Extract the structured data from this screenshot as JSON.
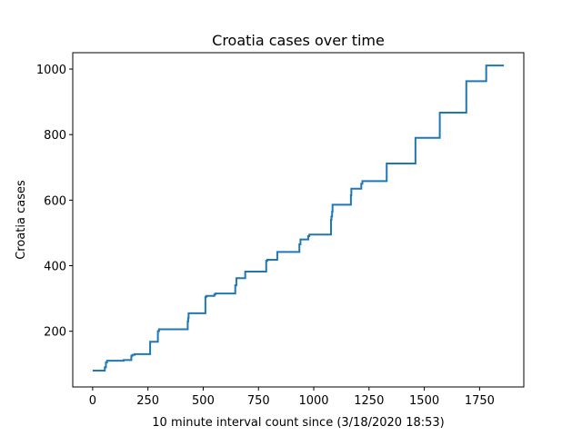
{
  "chart_data": {
    "type": "line",
    "title": "Croatia cases over time",
    "xlabel": "10 minute interval count since (3/18/2020 18:53)",
    "ylabel": "Croatia cases",
    "xlim": [
      -90,
      1950
    ],
    "ylim": [
      30,
      1050
    ],
    "xticks": [
      0,
      250,
      500,
      750,
      1000,
      1250,
      1500,
      1750
    ],
    "yticks": [
      200,
      400,
      600,
      800,
      1000
    ],
    "grid": false,
    "legend": "none",
    "line_color": "#1f77b4",
    "step": "post",
    "series": [
      {
        "x": [
          0,
          50,
          55,
          60,
          65,
          140,
          175,
          180,
          190,
          260,
          270,
          295,
          300,
          430,
          432,
          434,
          510,
          515,
          550,
          555,
          645,
          650,
          690,
          785,
          790,
          835,
          840,
          935,
          940,
          975,
          980,
          1075,
          1078,
          1080,
          1083,
          1085,
          1168,
          1170,
          1215,
          1220,
          1330,
          1335,
          1460,
          1465,
          1570,
          1575,
          1690,
          1695,
          1780,
          1785,
          1860
        ],
        "y": [
          80,
          80,
          90,
          105,
          110,
          112,
          125,
          128,
          130,
          168,
          168,
          200,
          206,
          230,
          240,
          255,
          305,
          308,
          312,
          315,
          340,
          362,
          382,
          415,
          418,
          442,
          442,
          465,
          480,
          490,
          495,
          495,
          540,
          550,
          565,
          586,
          615,
          635,
          650,
          658,
          712,
          712,
          790,
          790,
          867,
          867,
          963,
          963,
          1011,
          1011,
          1011
        ]
      }
    ]
  }
}
